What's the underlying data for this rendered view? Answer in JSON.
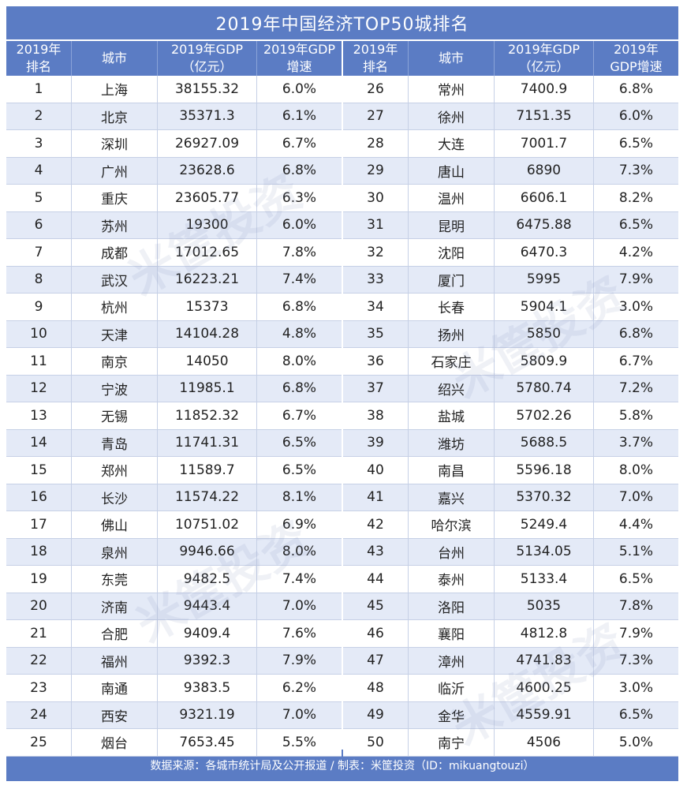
{
  "title": "2019年中国经济TOP50城排名",
  "headers": {
    "rank_l1": "2019年",
    "rank_l2": "排名",
    "city": "城市",
    "gdp_l1": "2019年GDP",
    "gdp_l2": "（亿元）",
    "growth_l1": "2019年GDP",
    "growth_l2": "增速",
    "growth2_l1": "2019年",
    "growth2_l2": "GDP增速"
  },
  "left_rows": [
    {
      "rank": "1",
      "city": "上海",
      "gdp": "38155.32",
      "growth": "6.0%"
    },
    {
      "rank": "2",
      "city": "北京",
      "gdp": "35371.3",
      "growth": "6.1%"
    },
    {
      "rank": "3",
      "city": "深圳",
      "gdp": "26927.09",
      "growth": "6.7%"
    },
    {
      "rank": "4",
      "city": "广州",
      "gdp": "23628.6",
      "growth": "6.8%"
    },
    {
      "rank": "5",
      "city": "重庆",
      "gdp": "23605.77",
      "growth": "6.3%"
    },
    {
      "rank": "6",
      "city": "苏州",
      "gdp": "19300",
      "growth": "6.0%"
    },
    {
      "rank": "7",
      "city": "成都",
      "gdp": "17012.65",
      "growth": "7.8%"
    },
    {
      "rank": "8",
      "city": "武汉",
      "gdp": "16223.21",
      "growth": "7.4%"
    },
    {
      "rank": "9",
      "city": "杭州",
      "gdp": "15373",
      "growth": "6.8%"
    },
    {
      "rank": "10",
      "city": "天津",
      "gdp": "14104.28",
      "growth": "4.8%"
    },
    {
      "rank": "11",
      "city": "南京",
      "gdp": "14050",
      "growth": "8.0%"
    },
    {
      "rank": "12",
      "city": "宁波",
      "gdp": "11985.1",
      "growth": "6.8%"
    },
    {
      "rank": "13",
      "city": "无锡",
      "gdp": "11852.32",
      "growth": "6.7%"
    },
    {
      "rank": "14",
      "city": "青岛",
      "gdp": "11741.31",
      "growth": "6.5%"
    },
    {
      "rank": "15",
      "city": "郑州",
      "gdp": "11589.7",
      "growth": "6.5%"
    },
    {
      "rank": "16",
      "city": "长沙",
      "gdp": "11574.22",
      "growth": "8.1%"
    },
    {
      "rank": "17",
      "city": "佛山",
      "gdp": "10751.02",
      "growth": "6.9%"
    },
    {
      "rank": "18",
      "city": "泉州",
      "gdp": "9946.66",
      "growth": "8.0%"
    },
    {
      "rank": "19",
      "city": "东莞",
      "gdp": "9482.5",
      "growth": "7.4%"
    },
    {
      "rank": "20",
      "city": "济南",
      "gdp": "9443.4",
      "growth": "7.0%"
    },
    {
      "rank": "21",
      "city": "合肥",
      "gdp": "9409.4",
      "growth": "7.6%"
    },
    {
      "rank": "22",
      "city": "福州",
      "gdp": "9392.3",
      "growth": "7.9%"
    },
    {
      "rank": "23",
      "city": "南通",
      "gdp": "9383.5",
      "growth": "6.2%"
    },
    {
      "rank": "24",
      "city": "西安",
      "gdp": "9321.19",
      "growth": "7.0%"
    },
    {
      "rank": "25",
      "city": "烟台",
      "gdp": "7653.45",
      "growth": "5.5%"
    }
  ],
  "right_rows": [
    {
      "rank": "26",
      "city": "常州",
      "gdp": "7400.9",
      "growth": "6.8%"
    },
    {
      "rank": "27",
      "city": "徐州",
      "gdp": "7151.35",
      "growth": "6.0%"
    },
    {
      "rank": "28",
      "city": "大连",
      "gdp": "7001.7",
      "growth": "6.5%"
    },
    {
      "rank": "29",
      "city": "唐山",
      "gdp": "6890",
      "growth": "7.3%"
    },
    {
      "rank": "30",
      "city": "温州",
      "gdp": "6606.1",
      "growth": "8.2%"
    },
    {
      "rank": "31",
      "city": "昆明",
      "gdp": "6475.88",
      "growth": "6.5%"
    },
    {
      "rank": "32",
      "city": "沈阳",
      "gdp": "6470.3",
      "growth": "4.2%"
    },
    {
      "rank": "33",
      "city": "厦门",
      "gdp": "5995",
      "growth": "7.9%"
    },
    {
      "rank": "34",
      "city": "长春",
      "gdp": "5904.1",
      "growth": "3.0%"
    },
    {
      "rank": "35",
      "city": "扬州",
      "gdp": "5850",
      "growth": "6.8%"
    },
    {
      "rank": "36",
      "city": "石家庄",
      "gdp": "5809.9",
      "growth": "6.7%"
    },
    {
      "rank": "37",
      "city": "绍兴",
      "gdp": "5780.74",
      "growth": "7.2%"
    },
    {
      "rank": "38",
      "city": "盐城",
      "gdp": "5702.26",
      "growth": "5.8%"
    },
    {
      "rank": "39",
      "city": "潍坊",
      "gdp": "5688.5",
      "growth": "3.7%"
    },
    {
      "rank": "40",
      "city": "南昌",
      "gdp": "5596.18",
      "growth": "8.0%"
    },
    {
      "rank": "41",
      "city": "嘉兴",
      "gdp": "5370.32",
      "growth": "7.0%"
    },
    {
      "rank": "42",
      "city": "哈尔滨",
      "gdp": "5249.4",
      "growth": "4.4%"
    },
    {
      "rank": "43",
      "city": "台州",
      "gdp": "5134.05",
      "growth": "5.1%"
    },
    {
      "rank": "44",
      "city": "泰州",
      "gdp": "5133.4",
      "growth": "6.5%"
    },
    {
      "rank": "45",
      "city": "洛阳",
      "gdp": "5035",
      "growth": "7.8%"
    },
    {
      "rank": "46",
      "city": "襄阳",
      "gdp": "4812.8",
      "growth": "7.9%"
    },
    {
      "rank": "47",
      "city": "漳州",
      "gdp": "4741.83",
      "growth": "7.3%"
    },
    {
      "rank": "48",
      "city": "临沂",
      "gdp": "4600.25",
      "growth": "3.0%"
    },
    {
      "rank": "49",
      "city": "金华",
      "gdp": "4559.91",
      "growth": "6.5%"
    },
    {
      "rank": "50",
      "city": "南宁",
      "gdp": "4506",
      "growth": "5.0%"
    }
  ],
  "footer": "数据来源：各城市统计局及公开报道 / 制表：米筐投资（ID：mikuangtouzi）",
  "watermark": "米筐投资",
  "colors": {
    "header": "#5b7cc4",
    "stripe": "#e4eaf7"
  }
}
